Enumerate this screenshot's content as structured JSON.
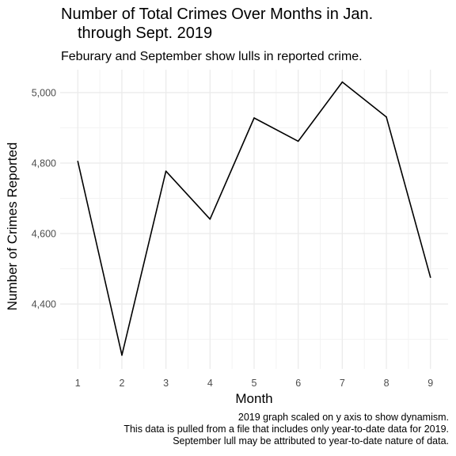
{
  "chart_data": {
    "type": "line",
    "title_lines": [
      "Number of Total Crimes Over Months in Jan.",
      "through Sept. 2019"
    ],
    "subtitle": "Feburary and September show lulls in reported crime.",
    "xlabel": "Month",
    "ylabel": "Number of Crimes Reported",
    "x": [
      1,
      2,
      3,
      4,
      5,
      6,
      7,
      8,
      9
    ],
    "values": [
      4805,
      4255,
      4777,
      4641,
      4928,
      4862,
      5030,
      4931,
      4476
    ],
    "x_ticks": [
      1,
      2,
      3,
      4,
      5,
      6,
      7,
      8,
      9
    ],
    "y_ticks": [
      4400,
      4600,
      4800,
      5000
    ],
    "y_tick_labels": [
      "4,400",
      "4,600",
      "4,800",
      "5,000"
    ],
    "xlim": [
      0.6,
      9.4
    ],
    "ylim": [
      4216,
      5065
    ],
    "grid": true,
    "line_color": "#000000",
    "grid_color": "#ebebeb",
    "caption_lines": [
      "2019 graph scaled on y axis to show dynamism.",
      "This data is pulled from a file that includes only year-to-date data for 2019.",
      "September lull may be attributed to year-to-date nature of data."
    ]
  }
}
